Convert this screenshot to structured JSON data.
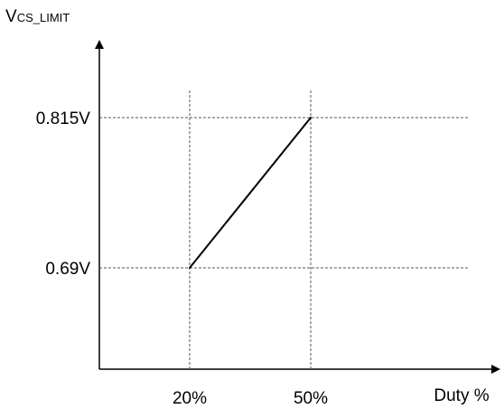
{
  "chart_data": {
    "type": "line",
    "ylabel": {
      "main": "V",
      "sub": "CS_LIMIT"
    },
    "xlabel": "Duty %",
    "x": [
      20,
      50
    ],
    "y": [
      0.69,
      0.815
    ],
    "x_ticks": [
      {
        "value": 20,
        "label": "20%"
      },
      {
        "value": 50,
        "label": "50%"
      }
    ],
    "y_ticks": [
      {
        "value": 0.69,
        "label": "0.69V"
      },
      {
        "value": 0.815,
        "label": "0.815V"
      }
    ],
    "grid": "dashed guide lines at tick values",
    "legend": "none",
    "colors": {
      "line": "#000000",
      "axis": "#000000",
      "guide": "#555555"
    }
  }
}
